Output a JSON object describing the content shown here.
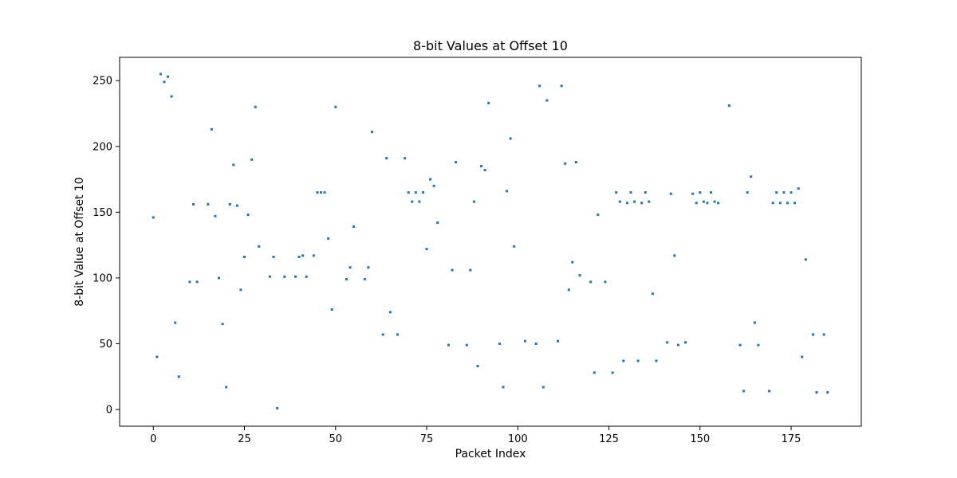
{
  "chart_data": {
    "type": "scatter",
    "title": "8-bit Values at Offset 10",
    "xlabel": "Packet Index",
    "ylabel": "8-bit Value at Offset 10",
    "xlim": [
      -9.25,
      194.25
    ],
    "ylim": [
      -12.7,
      267.7
    ],
    "xticks": [
      0,
      25,
      50,
      75,
      100,
      125,
      150,
      175
    ],
    "yticks": [
      0,
      50,
      100,
      150,
      200,
      250
    ],
    "grid": false,
    "legend": "none",
    "marker_color": "#1f77b4",
    "x": [
      0,
      1,
      2,
      3,
      4,
      5,
      6,
      7,
      10,
      11,
      12,
      15,
      16,
      17,
      18,
      19,
      20,
      21,
      22,
      23,
      24,
      25,
      26,
      27,
      28,
      29,
      32,
      33,
      34,
      36,
      39,
      40,
      41,
      42,
      44,
      45,
      46,
      47,
      48,
      49,
      50,
      53,
      54,
      55,
      58,
      59,
      60,
      63,
      64,
      65,
      67,
      69,
      70,
      71,
      72,
      73,
      74,
      75,
      76,
      77,
      78,
      81,
      82,
      83,
      86,
      87,
      88,
      89,
      90,
      91,
      92,
      95,
      96,
      97,
      98,
      99,
      102,
      105,
      106,
      107,
      108,
      111,
      112,
      113,
      114,
      115,
      116,
      117,
      120,
      121,
      122,
      124,
      126,
      127,
      128,
      129,
      130,
      131,
      132,
      133,
      134,
      135,
      136,
      137,
      138,
      141,
      142,
      143,
      144,
      146,
      148,
      149,
      150,
      151,
      152,
      153,
      154,
      155,
      158,
      161,
      162,
      163,
      164,
      165,
      166,
      169,
      170,
      171,
      172,
      173,
      174,
      175,
      176,
      177,
      178,
      179,
      181,
      182,
      184,
      185
    ],
    "y": [
      146,
      40,
      255,
      249,
      253,
      238,
      66,
      25,
      97,
      156,
      97,
      156,
      213,
      147,
      100,
      65,
      17,
      156,
      186,
      155,
      91,
      116,
      148,
      190,
      230,
      124,
      101,
      116,
      1,
      101,
      101,
      116,
      117,
      101,
      117,
      165,
      165,
      165,
      130,
      76,
      230,
      99,
      108,
      139,
      99,
      108,
      211,
      57,
      191,
      74,
      57,
      191,
      165,
      158,
      165,
      158,
      165,
      122,
      175,
      170,
      142,
      49,
      106,
      188,
      49,
      106,
      158,
      33,
      185,
      182,
      233,
      50,
      17,
      166,
      206,
      124,
      52,
      50,
      246,
      17,
      235,
      52,
      246,
      187,
      91,
      112,
      188,
      102,
      97,
      28,
      148,
      97,
      28,
      165,
      158,
      37,
      157,
      165,
      158,
      37,
      157,
      165,
      158,
      88,
      37,
      51,
      164,
      117,
      49,
      51,
      164,
      157,
      165,
      158,
      157,
      165,
      158,
      157,
      231,
      49,
      14,
      165,
      177,
      66,
      49,
      14,
      157,
      165,
      157,
      165,
      157,
      165,
      157,
      168,
      40,
      114,
      57,
      13,
      57,
      13
    ]
  }
}
